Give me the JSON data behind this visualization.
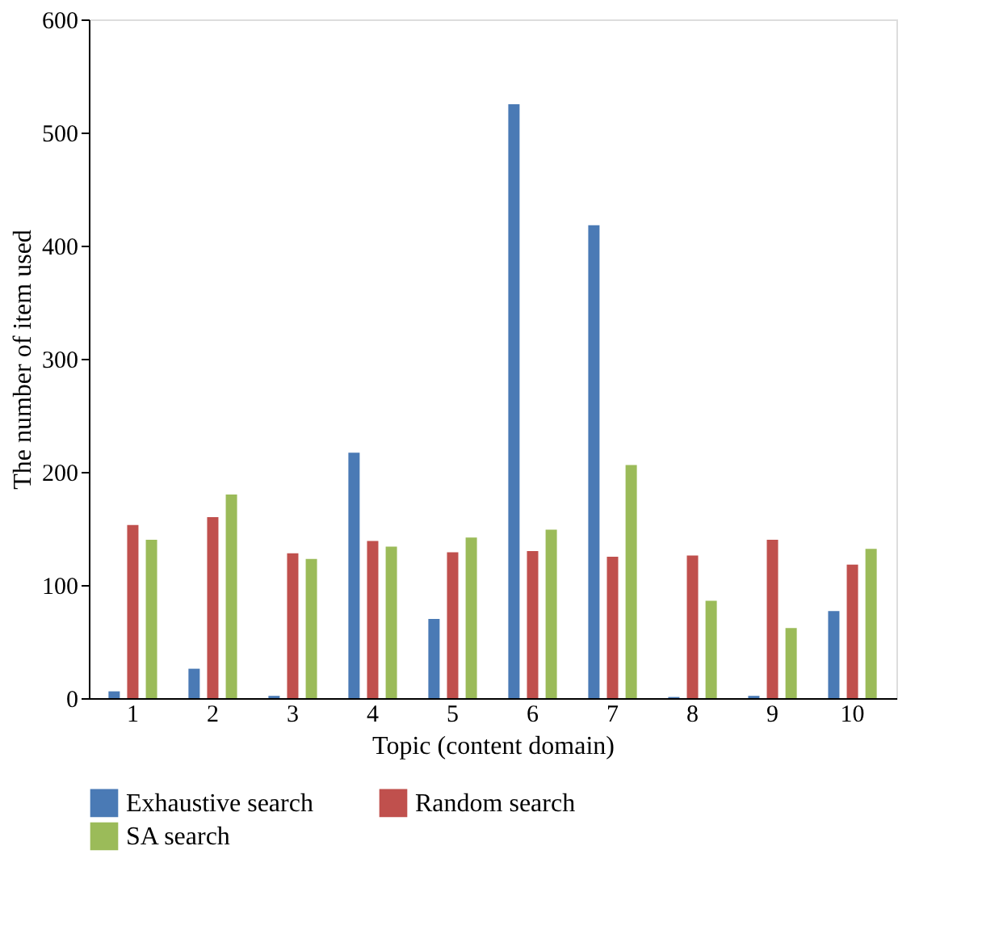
{
  "chart_data": {
    "type": "bar",
    "xlabel": "Topic (content domain)",
    "ylabel": "The number of item used",
    "categories": [
      "1",
      "2",
      "3",
      "4",
      "5",
      "6",
      "7",
      "8",
      "9",
      "10"
    ],
    "series": [
      {
        "name": "Exhaustive search",
        "color": "#4a7ab5",
        "values": [
          6,
          26,
          2,
          217,
          70,
          525,
          418,
          1,
          2,
          77
        ]
      },
      {
        "name": "Random search",
        "color": "#c0504d",
        "values": [
          153,
          160,
          128,
          139,
          129,
          130,
          125,
          126,
          140,
          118
        ]
      },
      {
        "name": "SA search",
        "color": "#9bbb59",
        "values": [
          140,
          180,
          123,
          134,
          142,
          149,
          206,
          86,
          62,
          132
        ]
      }
    ],
    "ylim": [
      0,
      600
    ],
    "yticks": [
      0,
      100,
      200,
      300,
      400,
      500,
      600
    ],
    "grid": false,
    "legend": "bottom"
  }
}
